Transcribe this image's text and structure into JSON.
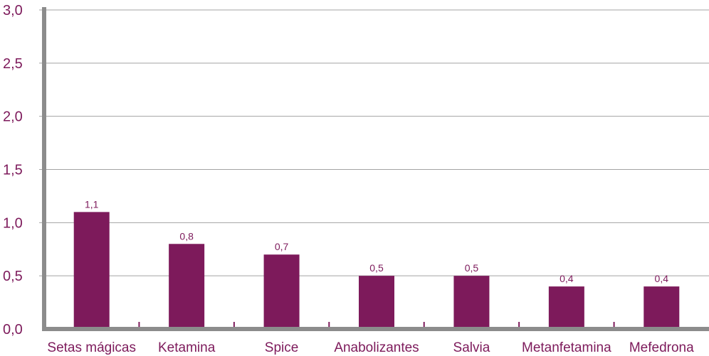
{
  "chart_data": {
    "type": "bar",
    "categories": [
      "Setas mágicas",
      "Ketamina",
      "Spice",
      "Anabolizantes",
      "Salvia",
      "Metanfetamina",
      "Mefedrona"
    ],
    "values": [
      1.1,
      0.8,
      0.7,
      0.5,
      0.5,
      0.4,
      0.4
    ],
    "data_labels": [
      "1,1",
      "0,8",
      "0,7",
      "0,5",
      "0,5",
      "0,4",
      "0,4"
    ],
    "y_ticks": [
      0,
      0.5,
      1.0,
      1.5,
      2.0,
      2.5,
      3.0
    ],
    "y_tick_labels": [
      "0,0",
      "0,5",
      "1,0",
      "1,5",
      "2,0",
      "2,5",
      "3,0"
    ],
    "ylim": [
      0,
      3.0
    ],
    "grid": true,
    "title": "",
    "xlabel": "",
    "ylabel": "",
    "colors": {
      "bar": "#7d1a5b",
      "text": "#7d1a5b",
      "axis": "#8c8c8c",
      "grid": "#a3a3a3"
    }
  }
}
